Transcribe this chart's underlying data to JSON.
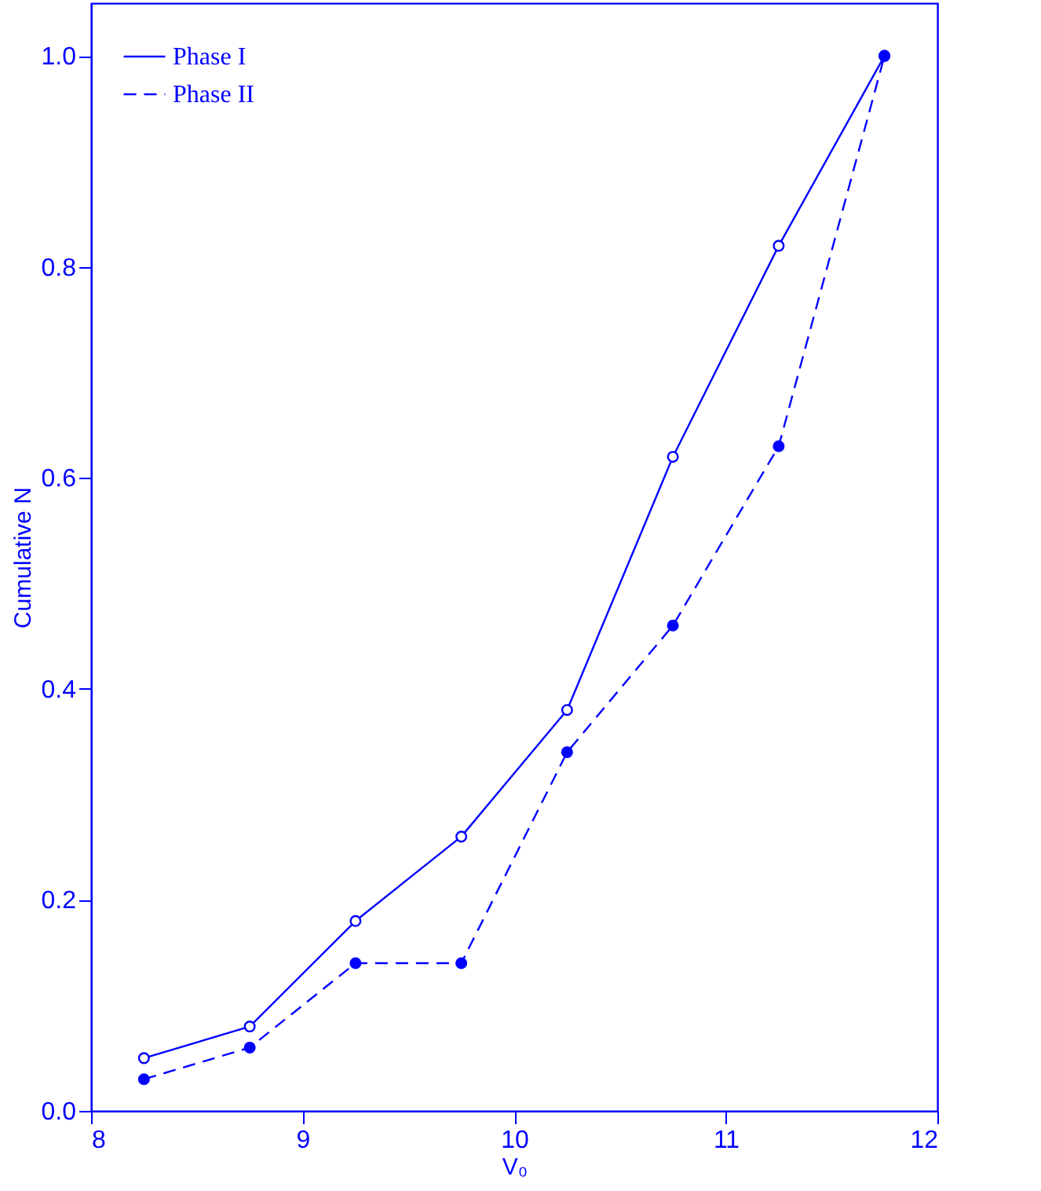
{
  "chart_data": {
    "type": "line",
    "xlabel": "V₀",
    "ylabel": "Cumulative N",
    "x": [
      8.25,
      8.75,
      9.25,
      9.75,
      10.25,
      10.75,
      11.25,
      11.75
    ],
    "series": [
      {
        "name": "Phase I",
        "color": "#0000ff",
        "line_style": "solid",
        "values": [
          0.05,
          0.08,
          0.18,
          0.26,
          0.38,
          0.62,
          0.82,
          1.0
        ]
      },
      {
        "name": "Phase II",
        "color": "#0000ff",
        "line_style": "dashed",
        "values": [
          0.03,
          0.06,
          0.14,
          0.14,
          0.34,
          0.46,
          0.63,
          1.0
        ]
      }
    ],
    "xlim": [
      8,
      12
    ],
    "xticks": [
      8,
      9,
      10,
      11,
      12
    ],
    "ylim": [
      0,
      1.05
    ],
    "yticks": [
      {
        "value": 0,
        "label": "0.0"
      },
      {
        "value": 0.2,
        "label": "0.2"
      },
      {
        "value": 0.4,
        "label": "0.4"
      },
      {
        "value": 0.6,
        "label": "0.6"
      },
      {
        "value": 0.8,
        "label": "0.8"
      },
      {
        "value": 1,
        "label": "1.0"
      }
    ],
    "marker": "circle",
    "legend": "top left",
    "grid": false
  }
}
